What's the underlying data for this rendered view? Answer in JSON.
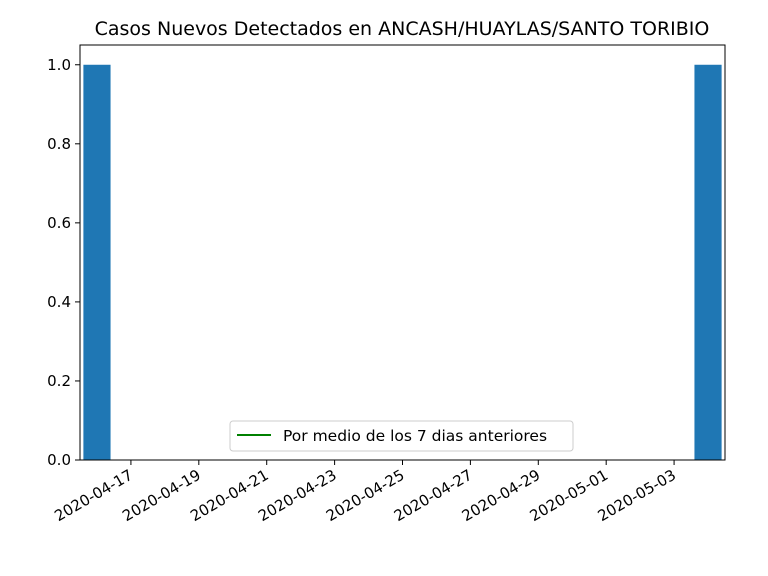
{
  "chart_data": {
    "type": "bar",
    "title": "Casos Nuevos Detectados en ANCASH/HUAYLAS/SANTO TORIBIO",
    "xlabel": "",
    "ylabel": "",
    "x_range": [
      "2020-04-16",
      "2020-05-04"
    ],
    "ylim": [
      0,
      1.05
    ],
    "y_ticks": [
      "0.0",
      "0.2",
      "0.4",
      "0.6",
      "0.8",
      "1.0"
    ],
    "x_ticks": [
      "2020-04-17",
      "2020-04-19",
      "2020-04-21",
      "2020-04-23",
      "2020-04-25",
      "2020-04-27",
      "2020-04-29",
      "2020-05-01",
      "2020-05-03"
    ],
    "bars": [
      {
        "date": "2020-04-16",
        "value": 1
      },
      {
        "date": "2020-05-04",
        "value": 1
      }
    ],
    "bar_color": "#1f77b4",
    "series": [
      {
        "name": "Por medio de los 7 dias anteriores",
        "values": [],
        "color": "#008000"
      }
    ],
    "legend": {
      "placement": "lower center",
      "entries": [
        "Por medio de los 7 dias anteriores"
      ]
    },
    "grid": false
  }
}
